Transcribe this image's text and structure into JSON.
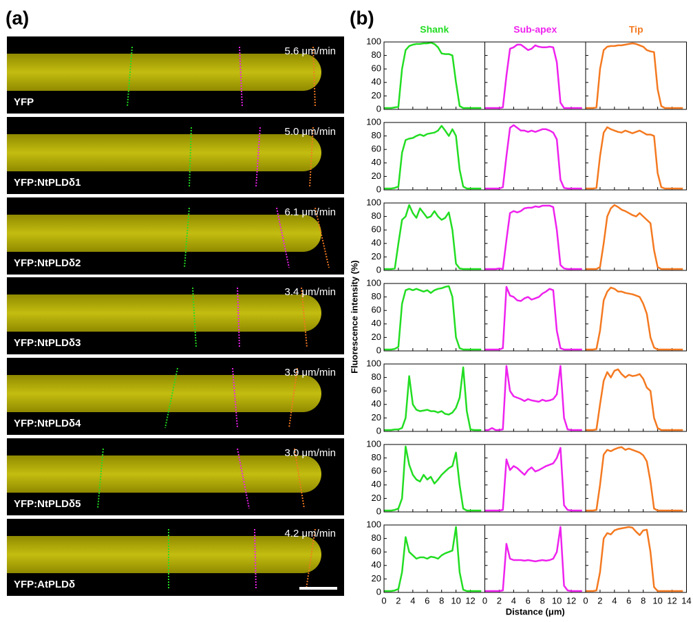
{
  "panel_a": {
    "label": "(a)",
    "images": [
      {
        "label": "YFP",
        "speed": "5.6 μm/min"
      },
      {
        "label": "YFP:NtPLDδ1",
        "speed": "5.0 μm/min"
      },
      {
        "label": "YFP:NtPLDδ2",
        "speed": "6.1 μm/min"
      },
      {
        "label": "YFP:NtPLDδ3",
        "speed": "3.4 μm/min"
      },
      {
        "label": "YFP:NtPLDδ4",
        "speed": "3.9 μm/min"
      },
      {
        "label": "YFP:NtPLDδ5",
        "speed": "3.0 μm/min"
      },
      {
        "label": "YFP:AtPLDδ",
        "speed": "4.2 μm/min"
      }
    ]
  },
  "panel_b": {
    "label": "(b)"
  },
  "chart_data": {
    "type": "line-grid",
    "ylabel": "Fluorescence intensity (%)",
    "xlabel": "Distance (μm)",
    "xlim": [
      0,
      14
    ],
    "ylim": [
      0,
      100
    ],
    "xticks": [
      0,
      2,
      4,
      6,
      8,
      10,
      12,
      14
    ],
    "yticks": [
      0,
      20,
      40,
      60,
      80,
      100
    ],
    "x": [
      0,
      0.5,
      1,
      1.5,
      2,
      2.5,
      3,
      3.5,
      4,
      4.5,
      5,
      5.5,
      6,
      6.5,
      7,
      7.5,
      8,
      8.5,
      9,
      9.5,
      10,
      10.5,
      11,
      11.5,
      12,
      12.5,
      13,
      13.5
    ],
    "columns": [
      {
        "name": "Shank",
        "color": "#22dd22"
      },
      {
        "name": "Sub-apex",
        "color": "#ee22ee"
      },
      {
        "name": "Tip",
        "color": "#f47920"
      }
    ],
    "rows": [
      {
        "series": [
          {
            "values": [
              2,
              2,
              2,
              3,
              4,
              60,
              88,
              94,
              96,
              97,
              97,
              98,
              98,
              99,
              97,
              92,
              83,
              82,
              82,
              80,
              40,
              5,
              2,
              2,
              2,
              2,
              2,
              2
            ]
          },
          {
            "values": [
              2,
              2,
              2,
              2,
              2,
              3,
              50,
              90,
              92,
              96,
              96,
              92,
              88,
              90,
              95,
              93,
              92,
              92,
              93,
              92,
              70,
              10,
              2,
              2,
              2,
              2,
              2,
              2
            ]
          },
          {
            "values": [
              2,
              2,
              2,
              3,
              60,
              88,
              93,
              94,
              94,
              95,
              95,
              96,
              97,
              98,
              97,
              95,
              93,
              88,
              86,
              85,
              30,
              5,
              2,
              2,
              2,
              2,
              2,
              2
            ]
          }
        ]
      },
      {
        "series": [
          {
            "values": [
              2,
              2,
              2,
              3,
              5,
              55,
              74,
              76,
              77,
              80,
              82,
              80,
              83,
              84,
              85,
              88,
              95,
              88,
              80,
              90,
              80,
              30,
              5,
              2,
              2,
              2,
              2,
              2
            ]
          },
          {
            "values": [
              2,
              2,
              2,
              2,
              2,
              4,
              50,
              92,
              96,
              92,
              88,
              88,
              86,
              88,
              86,
              88,
              90,
              90,
              88,
              85,
              75,
              15,
              3,
              2,
              2,
              2,
              2,
              2
            ]
          },
          {
            "values": [
              2,
              2,
              2,
              3,
              50,
              85,
              93,
              90,
              88,
              86,
              85,
              88,
              86,
              84,
              86,
              88,
              85,
              82,
              82,
              80,
              25,
              4,
              2,
              2,
              2,
              2,
              2,
              2
            ]
          }
        ]
      },
      {
        "series": [
          {
            "values": [
              2,
              2,
              2,
              3,
              40,
              75,
              80,
              97,
              85,
              78,
              92,
              85,
              78,
              80,
              88,
              80,
              75,
              78,
              86,
              60,
              10,
              3,
              2,
              2,
              2,
              2,
              2,
              2
            ]
          },
          {
            "values": [
              2,
              2,
              2,
              2,
              3,
              2,
              45,
              85,
              88,
              86,
              88,
              92,
              93,
              93,
              95,
              94,
              96,
              96,
              96,
              94,
              60,
              8,
              3,
              2,
              2,
              2,
              2,
              2
            ]
          },
          {
            "values": [
              2,
              2,
              2,
              2,
              5,
              40,
              80,
              92,
              97,
              94,
              90,
              88,
              85,
              82,
              80,
              85,
              80,
              75,
              70,
              30,
              5,
              2,
              2,
              2,
              2,
              2,
              2,
              2
            ]
          }
        ]
      },
      {
        "series": [
          {
            "values": [
              2,
              2,
              2,
              3,
              6,
              70,
              90,
              92,
              90,
              92,
              90,
              88,
              90,
              86,
              90,
              92,
              93,
              95,
              96,
              80,
              20,
              4,
              2,
              2,
              2,
              2,
              2,
              2
            ]
          },
          {
            "values": [
              2,
              2,
              2,
              2,
              2,
              4,
              95,
              82,
              80,
              75,
              74,
              78,
              80,
              76,
              78,
              80,
              85,
              88,
              92,
              90,
              30,
              4,
              2,
              2,
              2,
              2,
              2,
              2
            ]
          },
          {
            "values": [
              2,
              2,
              2,
              3,
              30,
              75,
              88,
              94,
              92,
              88,
              88,
              86,
              85,
              84,
              82,
              80,
              70,
              55,
              20,
              5,
              2,
              2,
              2,
              2,
              2,
              2,
              2,
              2
            ]
          }
        ]
      },
      {
        "series": [
          {
            "values": [
              2,
              2,
              2,
              3,
              3,
              5,
              20,
              82,
              40,
              32,
              30,
              31,
              32,
              30,
              30,
              28,
              30,
              26,
              25,
              28,
              35,
              50,
              95,
              30,
              3,
              2,
              2,
              2
            ]
          },
          {
            "values": [
              2,
              2,
              5,
              2,
              2,
              3,
              97,
              60,
              52,
              50,
              48,
              45,
              48,
              46,
              45,
              44,
              47,
              45,
              46,
              48,
              55,
              97,
              20,
              3,
              2,
              2,
              2,
              2
            ]
          },
          {
            "values": [
              2,
              2,
              2,
              3,
              40,
              75,
              88,
              80,
              90,
              92,
              85,
              80,
              84,
              82,
              83,
              85,
              78,
              65,
              60,
              20,
              5,
              2,
              2,
              2,
              2,
              2,
              2,
              2
            ]
          }
        ]
      },
      {
        "series": [
          {
            "values": [
              2,
              2,
              2,
              3,
              5,
              20,
              97,
              70,
              55,
              48,
              45,
              55,
              48,
              52,
              42,
              48,
              55,
              60,
              65,
              68,
              88,
              40,
              5,
              2,
              2,
              2,
              2,
              2
            ]
          },
          {
            "values": [
              2,
              2,
              2,
              2,
              2,
              3,
              78,
              62,
              68,
              65,
              60,
              55,
              62,
              66,
              60,
              62,
              65,
              68,
              70,
              72,
              80,
              95,
              10,
              3,
              2,
              2,
              2,
              2
            ]
          },
          {
            "values": [
              2,
              2,
              2,
              3,
              40,
              85,
              92,
              90,
              93,
              95,
              96,
              92,
              94,
              92,
              90,
              88,
              84,
              75,
              45,
              5,
              2,
              2,
              2,
              2,
              2,
              2,
              2,
              2
            ]
          }
        ]
      },
      {
        "series": [
          {
            "values": [
              2,
              2,
              2,
              3,
              5,
              30,
              82,
              60,
              55,
              50,
              52,
              52,
              50,
              53,
              52,
              50,
              55,
              58,
              60,
              62,
              97,
              30,
              4,
              2,
              2,
              2,
              2,
              2
            ]
          },
          {
            "values": [
              2,
              2,
              2,
              2,
              2,
              3,
              72,
              50,
              48,
              48,
              48,
              47,
              48,
              47,
              46,
              47,
              48,
              47,
              48,
              50,
              60,
              97,
              10,
              3,
              2,
              2,
              2,
              2
            ]
          },
          {
            "values": [
              2,
              2,
              2,
              3,
              30,
              80,
              88,
              86,
              92,
              94,
              95,
              96,
              97,
              96,
              90,
              85,
              92,
              93,
              60,
              8,
              2,
              2,
              2,
              2,
              2,
              2,
              2,
              2
            ]
          }
        ]
      }
    ]
  }
}
